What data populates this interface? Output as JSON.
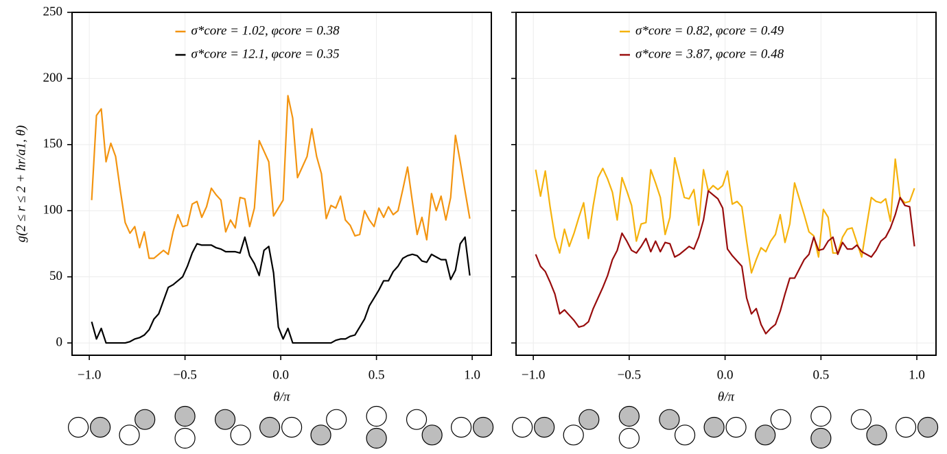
{
  "chart_data": [
    {
      "type": "line",
      "xlabel": "θ/π",
      "ylabel": "g(2 ≤ r ≤ 2 + hr/a1, θ)",
      "xlim": [
        -1.09,
        1.1
      ],
      "ylim": [
        -9.3,
        250
      ],
      "xticks": [
        {
          "value": -1.0,
          "label": "−1.0"
        },
        {
          "value": -0.5,
          "label": "−0.5"
        },
        {
          "value": 0.0,
          "label": "0.0"
        },
        {
          "value": 0.5,
          "label": "0.5"
        },
        {
          "value": 1.0,
          "label": "1.0"
        }
      ],
      "yticks": [
        0,
        50,
        100,
        150,
        200,
        250
      ],
      "grid": true,
      "x": [
        -0.9875,
        -0.9625,
        -0.9375,
        -0.9125,
        -0.8875,
        -0.8625,
        -0.8375,
        -0.8125,
        -0.7875,
        -0.7625,
        -0.7375,
        -0.7125,
        -0.6875,
        -0.6625,
        -0.6375,
        -0.6125,
        -0.5875,
        -0.5625,
        -0.5375,
        -0.5125,
        -0.4875,
        -0.4625,
        -0.4375,
        -0.4125,
        -0.3875,
        -0.3625,
        -0.3375,
        -0.3125,
        -0.2875,
        -0.2625,
        -0.2375,
        -0.2125,
        -0.1875,
        -0.1625,
        -0.1375,
        -0.1125,
        -0.0875,
        -0.0625,
        -0.0375,
        -0.0125,
        0.0125,
        0.0375,
        0.0625,
        0.0875,
        0.1125,
        0.1375,
        0.1625,
        0.1875,
        0.2125,
        0.2375,
        0.2625,
        0.2875,
        0.3125,
        0.3375,
        0.3625,
        0.3875,
        0.4125,
        0.4375,
        0.4625,
        0.4875,
        0.5125,
        0.5375,
        0.5625,
        0.5875,
        0.6125,
        0.6375,
        0.6625,
        0.6875,
        0.7125,
        0.7375,
        0.7625,
        0.7875,
        0.8125,
        0.8375,
        0.8625,
        0.8875,
        0.9125,
        0.9375,
        0.9625,
        0.9875
      ],
      "series": [
        {
          "name": "σ*core = 1.02,  φcore = 0.38",
          "color": "#f39410",
          "values": [
            108,
            172,
            177,
            137,
            151,
            141,
            115,
            91,
            83,
            88,
            72,
            84,
            64,
            64,
            67,
            70,
            67,
            84,
            97,
            88,
            89,
            105,
            107,
            95,
            103,
            117,
            112,
            108,
            84,
            93,
            87,
            110,
            109,
            88,
            102,
            153,
            145,
            137,
            96,
            102,
            108,
            187,
            170,
            125,
            133,
            141,
            162,
            141,
            128,
            94,
            104,
            102,
            111,
            93,
            89,
            81,
            82,
            100,
            93,
            88,
            102,
            95,
            103,
            97,
            100,
            116,
            133,
            107,
            82,
            95,
            78,
            113,
            100,
            111,
            93,
            110,
            157,
            137,
            115,
            94
          ]
        },
        {
          "name": "σ*core = 12.1,  φcore = 0.35",
          "color": "#000000",
          "values": [
            16,
            3,
            11,
            0,
            0,
            0,
            0,
            0,
            1,
            3,
            4,
            6,
            10,
            18,
            22,
            32,
            42,
            44,
            47,
            50,
            58,
            68,
            75,
            74,
            74,
            74,
            72,
            71,
            69,
            69,
            69,
            68,
            80,
            66,
            60,
            51,
            70,
            73,
            53,
            12,
            3,
            11,
            0,
            0,
            0,
            0,
            0,
            0,
            0,
            0,
            0,
            2,
            3,
            3,
            5,
            6,
            12,
            18,
            28,
            34,
            40,
            47,
            47,
            54,
            58,
            64,
            66,
            67,
            66,
            62,
            61,
            67,
            65,
            63,
            63,
            48,
            55,
            75,
            80,
            51
          ]
        }
      ]
    },
    {
      "type": "line",
      "xlabel": "θ/π",
      "xlim": [
        -1.09,
        1.1
      ],
      "ylim": [
        -9.3,
        250
      ],
      "xticks": [
        {
          "value": -1.0,
          "label": "−1.0"
        },
        {
          "value": -0.5,
          "label": "−0.5"
        },
        {
          "value": 0.0,
          "label": "0.0"
        },
        {
          "value": 0.5,
          "label": "0.5"
        },
        {
          "value": 1.0,
          "label": "1.0"
        }
      ],
      "yticks": [
        0,
        50,
        100,
        150,
        200,
        250
      ],
      "grid": true,
      "x": [
        -0.9875,
        -0.9625,
        -0.9375,
        -0.9125,
        -0.8875,
        -0.8625,
        -0.8375,
        -0.8125,
        -0.7875,
        -0.7625,
        -0.7375,
        -0.7125,
        -0.6875,
        -0.6625,
        -0.6375,
        -0.6125,
        -0.5875,
        -0.5625,
        -0.5375,
        -0.5125,
        -0.4875,
        -0.4625,
        -0.4375,
        -0.4125,
        -0.3875,
        -0.3625,
        -0.3375,
        -0.3125,
        -0.2875,
        -0.2625,
        -0.2375,
        -0.2125,
        -0.1875,
        -0.1625,
        -0.1375,
        -0.1125,
        -0.0875,
        -0.0625,
        -0.0375,
        -0.0125,
        0.0125,
        0.0375,
        0.0625,
        0.0875,
        0.1125,
        0.1375,
        0.1625,
        0.1875,
        0.2125,
        0.2375,
        0.2625,
        0.2875,
        0.3125,
        0.3375,
        0.3625,
        0.3875,
        0.4125,
        0.4375,
        0.4625,
        0.4875,
        0.5125,
        0.5375,
        0.5625,
        0.5875,
        0.6125,
        0.6375,
        0.6625,
        0.6875,
        0.7125,
        0.7375,
        0.7625,
        0.7875,
        0.8125,
        0.8375,
        0.8625,
        0.8875,
        0.9125,
        0.9375,
        0.9625,
        0.9875
      ],
      "series": [
        {
          "name": "σ*core = 0.82,  φcore = 0.49",
          "color": "#f5b20c",
          "values": [
            131,
            111,
            130,
            103,
            80,
            68,
            86,
            73,
            83,
            95,
            106,
            79,
            104,
            125,
            132,
            124,
            114,
            93,
            125,
            115,
            104,
            77,
            90,
            91,
            131,
            121,
            110,
            82,
            95,
            140,
            125,
            110,
            109,
            116,
            89,
            131,
            115,
            119,
            116,
            119,
            130,
            105,
            107,
            103,
            77,
            53,
            63,
            72,
            69,
            77,
            82,
            97,
            76,
            90,
            121,
            109,
            97,
            84,
            81,
            65,
            101,
            95,
            68,
            68,
            80,
            86,
            87,
            76,
            65,
            88,
            110,
            107,
            106,
            109,
            92,
            139,
            110,
            106,
            107,
            117
          ]
        },
        {
          "name": "σ*core = 3.87,  φcore = 0.48",
          "color": "#980c0c",
          "values": [
            67,
            58,
            54,
            46,
            37,
            22,
            25,
            21,
            17,
            12,
            13,
            16,
            26,
            34,
            42,
            51,
            63,
            70,
            83,
            77,
            70,
            68,
            73,
            79,
            69,
            77,
            69,
            76,
            75,
            65,
            67,
            70,
            73,
            71,
            80,
            93,
            115,
            112,
            109,
            102,
            71,
            66,
            62,
            58,
            34,
            22,
            26,
            14,
            7,
            11,
            14,
            24,
            37,
            49,
            49,
            56,
            63,
            67,
            80,
            70,
            71,
            77,
            80,
            67,
            76,
            71,
            71,
            74,
            69,
            67,
            65,
            70,
            77,
            80,
            87,
            97,
            110,
            104,
            103,
            73
          ]
        }
      ]
    }
  ]
}
